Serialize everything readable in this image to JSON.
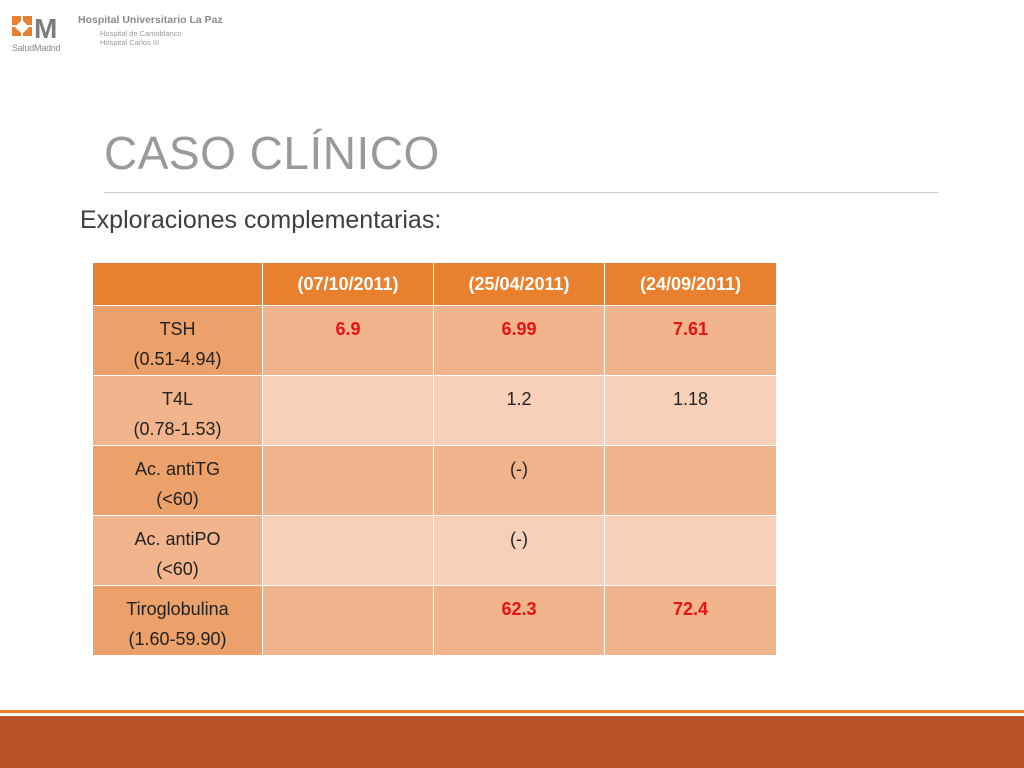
{
  "header": {
    "logo_mark": "M",
    "logo_sub": "SaludMadrid",
    "hospital_name": "Hospital Universitario La Paz",
    "hospital_line1": "Hospital de Cantoblanco",
    "hospital_line2": "Hospital Carlos III"
  },
  "slide": {
    "title": "CASO CLÍNICO",
    "subtitle": "Exploraciones complementarias:"
  },
  "table": {
    "columns": [
      "",
      "(07/10/2011)",
      "(25/04/2011)",
      "(24/09/2011)"
    ],
    "rows": [
      {
        "label": "TSH",
        "range": "(0.51-4.94)",
        "values": [
          "6.9",
          "6.99",
          "7.61"
        ],
        "highlight": [
          true,
          true,
          true
        ]
      },
      {
        "label": "T4L",
        "range": "(0.78-1.53)",
        "values": [
          "",
          "1.2",
          "1.18"
        ],
        "highlight": [
          false,
          false,
          false
        ]
      },
      {
        "label": "Ac. antiTG",
        "range": "(<60)",
        "values": [
          "",
          "(-)",
          ""
        ],
        "highlight": [
          false,
          false,
          false
        ]
      },
      {
        "label": "Ac. antiPO",
        "range": "(<60)",
        "values": [
          "",
          "(-)",
          ""
        ],
        "highlight": [
          false,
          false,
          false
        ]
      },
      {
        "label": "Tiroglobulina",
        "range": "(1.60-59.90)",
        "values": [
          "",
          "62.3",
          "72.4"
        ],
        "highlight": [
          false,
          true,
          true
        ]
      }
    ]
  },
  "colors": {
    "accent": "#e9802e",
    "footer": "#b85427",
    "highlight_text": "#e8101a"
  }
}
